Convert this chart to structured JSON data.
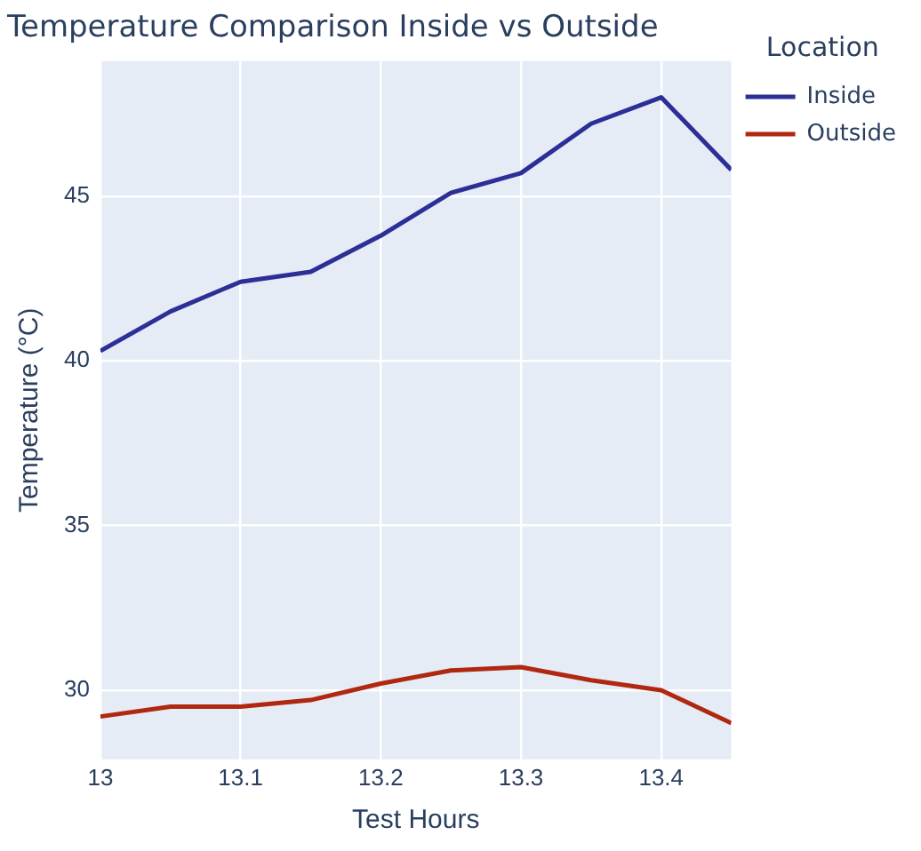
{
  "chart_data": {
    "type": "line",
    "title": "Temperature Comparison Inside vs Outside",
    "xlabel": "Test Hours",
    "ylabel": "Temperature (°C)",
    "legend_title": "Location",
    "legend": "top right",
    "grid": true,
    "x": [
      13,
      13.05,
      13.1,
      13.15,
      13.2,
      13.25,
      13.3,
      13.35,
      13.4,
      13.45
    ],
    "series": [
      {
        "name": "Inside",
        "color": "#2b2f96",
        "values": [
          40.3,
          41.5,
          42.4,
          42.7,
          43.8,
          45.1,
          45.7,
          47.2,
          48.0,
          45.8
        ]
      },
      {
        "name": "Outside",
        "color": "#b0280f",
        "values": [
          29.2,
          29.5,
          29.5,
          29.7,
          30.2,
          30.6,
          30.7,
          30.3,
          30.0,
          29.0
        ]
      }
    ],
    "xlim": [
      13,
      13.45
    ],
    "xticks": [
      13,
      13.1,
      13.2,
      13.3,
      13.4
    ],
    "ylim": [
      27.9,
      49.1
    ],
    "yticks": [
      30,
      35,
      40,
      45
    ]
  }
}
